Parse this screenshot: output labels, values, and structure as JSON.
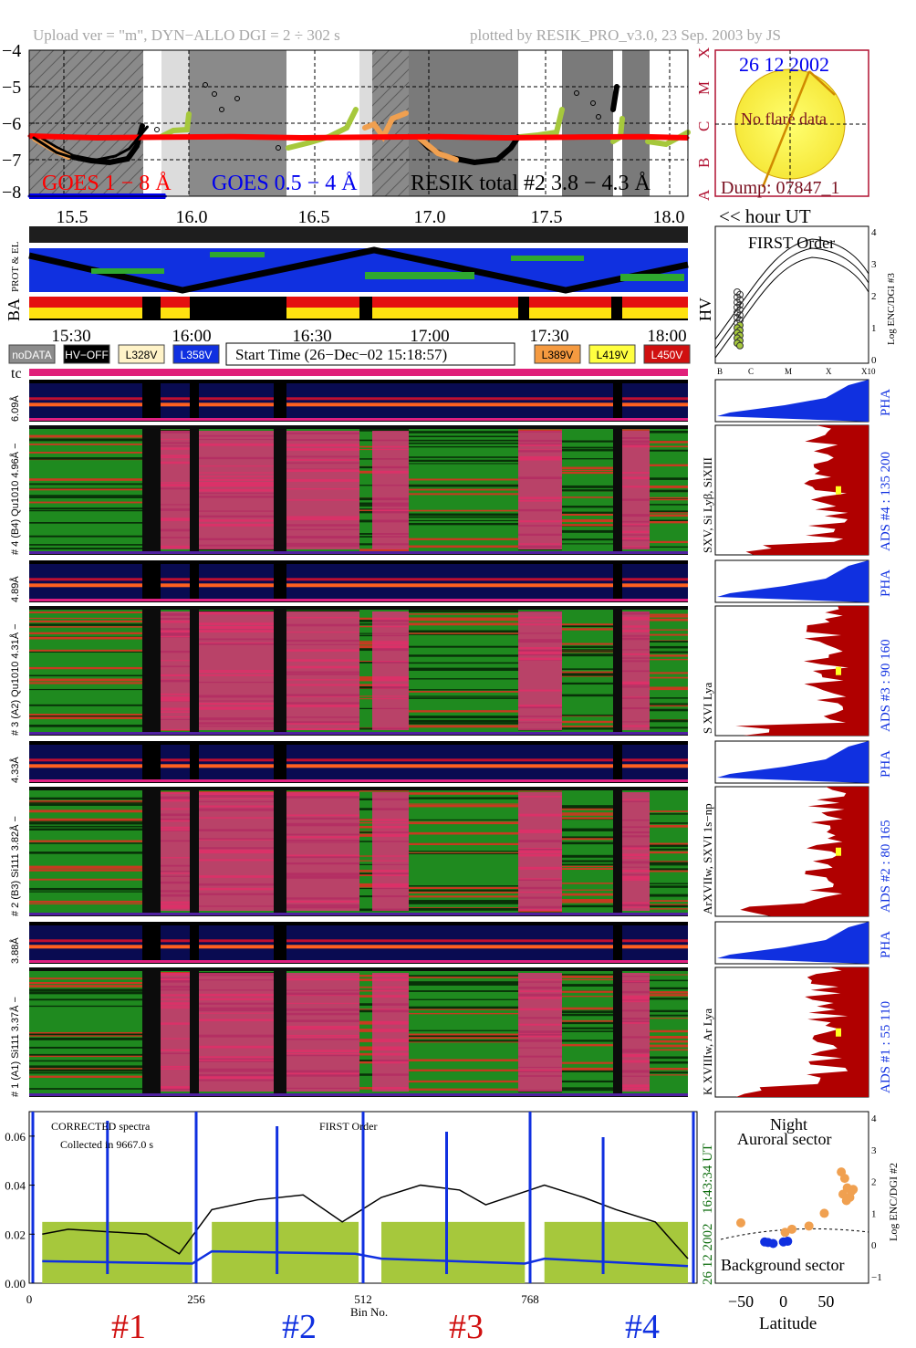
{
  "header": {
    "left": "Upload ver = \"m\", DYN−ALLO DGI =   2 ÷ 302 s",
    "right": "plotted by RESIK_PRO_v3.0, 23 Sep. 2003 by JS"
  },
  "colors": {
    "goes_long": "#ff0000",
    "goes_short": "#0000ee",
    "resik_total": "#000000",
    "olive": "#a6c83c",
    "orange": "#f0a050",
    "dark_red": "#b00000",
    "pha_blue": "#1030e0",
    "magenta": "#ff2aa0",
    "green": "#2fa82f"
  },
  "goes_panel": {
    "y_ticks": [
      "−4",
      "−5",
      "−6",
      "−7",
      "−8"
    ],
    "x_ticks": [
      "15.5",
      "16.0",
      "16.5",
      "17.0",
      "17.5",
      "18.0"
    ],
    "class_labels": [
      "X",
      "M",
      "C",
      "B",
      "A"
    ],
    "legend_goes_long": "GOES 1 − 8 Å",
    "legend_goes_short": "GOES 0.5 − 4 Å",
    "legend_resik": "RESIK total #2  3.8 − 4.3 Å",
    "hour_label": "<< hour UT"
  },
  "sun_panel": {
    "date": "26 12 2002",
    "no_flare": "No flare data",
    "dump": "Dump: 07847_1"
  },
  "strip_labels": {
    "prot_el": "PROT & EL",
    "ba": "BA",
    "hv": "HV"
  },
  "first_order_panel": {
    "title": "FIRST Order",
    "y_label": "Log ENC/DGI #3",
    "y_ticks": [
      "4",
      "3",
      "2",
      "1",
      "0"
    ],
    "x_ticks": [
      "B",
      "C",
      "M",
      "X",
      "X10"
    ]
  },
  "time_axis": {
    "ticks": [
      "15:30",
      "16:00",
      "16:30",
      "17:00",
      "17:30",
      "18:00"
    ],
    "start_time": "Start Time (26−Dec−02 15:18:57)"
  },
  "legend_boxes": [
    {
      "label": "noDATA",
      "bg": "#8c8c8c",
      "fg": "#ffffff"
    },
    {
      "label": "HV−OFF",
      "bg": "#000000",
      "fg": "#ffffff"
    },
    {
      "label": "L328V",
      "bg": "#fff3c8",
      "fg": "#000000"
    },
    {
      "label": "L358V",
      "bg": "#1030e0",
      "fg": "#ffffff"
    },
    {
      "label": "L389V",
      "bg": "#f59a40",
      "fg": "#000000"
    },
    {
      "label": "L419V",
      "bg": "#ffff40",
      "fg": "#000000"
    },
    {
      "label": "L450V",
      "bg": "#d01010",
      "fg": "#ffffff"
    }
  ],
  "tc_label": "tc",
  "channels": [
    {
      "pha_left": "6.09Å",
      "spec_left": "# 4 (B4) Qu1010 4.96Å −",
      "spec_right": "SXV, Si Lyβ, SiXIII",
      "ads_label": "ADS #4 :   135 200",
      "pha_label": "PHA"
    },
    {
      "pha_left": "4.89Å",
      "spec_left": "# 3 (A2) Qu1010 4.31Å −",
      "spec_right": "S XVI Lya",
      "ads_label": "ADS #3 :    90 160",
      "pha_label": "PHA"
    },
    {
      "pha_left": "4.33Å",
      "spec_left": "# 2 (B3) Si111 3.82Å −",
      "spec_right": "ArXVIIw, SXVI 1s−np",
      "ads_label": "ADS #2 :    80 165",
      "pha_label": "PHA"
    },
    {
      "pha_left": "3.88Å",
      "spec_left": "# 1 (A1) Si111 3.37Å −",
      "spec_right": "K XVIIIw, Ar Lya",
      "ads_label": "ADS #1 :    55 110",
      "pha_label": "PHA"
    }
  ],
  "spectrum_panel": {
    "corrected": "CORRECTED spectra",
    "collected": "Collected in  9667.0 s",
    "first_order": "FIRST Order",
    "y_ticks": [
      "0.06",
      "0.04",
      "0.02",
      "0.00"
    ],
    "x_ticks": [
      "0",
      "256",
      "512",
      "768"
    ],
    "x_label": "Bin No.",
    "ut_label": "16:43:34 UT",
    "date_label": "26 12 2002",
    "detectors": [
      {
        "label": "#1",
        "color": "#d01010"
      },
      {
        "label": "#2",
        "color": "#1030e0"
      },
      {
        "label": "#3",
        "color": "#d01010"
      },
      {
        "label": "#4",
        "color": "#1030e0"
      }
    ]
  },
  "latitude_panel": {
    "night": "Night",
    "auroral": "Auroral sector",
    "background": "Background sector",
    "x_label": "Latitude",
    "x_ticks": [
      "−50",
      "0",
      "50"
    ],
    "y_label": "Log ENC/DGI #2",
    "y_ticks": [
      "4",
      "3",
      "2",
      "1",
      "0",
      "−1"
    ]
  },
  "chart_data": [
    {
      "type": "line",
      "title": "",
      "xlabel": "hour UT",
      "ylabel": "",
      "xlim": [
        15.3,
        18.2
      ],
      "ylim": [
        -8,
        -4
      ],
      "series": [
        {
          "name": "GOES 1 − 8 Å",
          "x": [
            15.3,
            15.6,
            15.9,
            16.2,
            16.5,
            16.8,
            17.1,
            17.4,
            17.7,
            18.0,
            18.2
          ],
          "values": [
            -6.35,
            -6.4,
            -6.38,
            -6.37,
            -6.4,
            -6.38,
            -6.37,
            -6.4,
            -6.38,
            -6.37,
            -6.4
          ]
        },
        {
          "name": "GOES 0.5 − 4 Å",
          "x": [
            15.3,
            15.5,
            15.7,
            15.9
          ],
          "values": [
            -8.0,
            -8.0,
            -8.0,
            -8.0
          ]
        },
        {
          "name": "RESIK total #2  3.8 − 4.3 Å",
          "x": [
            15.32,
            15.42,
            15.52,
            15.6,
            15.68,
            15.74,
            15.78,
            15.82
          ],
          "values": [
            -6.4,
            -6.8,
            -7.0,
            -7.0,
            -6.9,
            -6.7,
            -6.4,
            -6.1
          ]
        }
      ]
    },
    {
      "type": "line",
      "title": "",
      "xlabel": "Bin No.",
      "ylabel": "",
      "xlim": [
        0,
        1024
      ],
      "ylim": [
        0,
        0.07
      ],
      "series": [
        {
          "name": "",
          "x": [
            20,
            60,
            120,
            180,
            230,
            280,
            350,
            420,
            480,
            540,
            600,
            660,
            700,
            790,
            850,
            900,
            960,
            1010
          ],
          "values": [
            0.02,
            0.022,
            0.021,
            0.02,
            0.012,
            0.03,
            0.034,
            0.036,
            0.025,
            0.035,
            0.04,
            0.038,
            0.032,
            0.04,
            0.035,
            0.03,
            0.025,
            0.01
          ]
        },
        {
          "name": "",
          "x": [
            20,
            250,
            280,
            500,
            540,
            760,
            790,
            1010
          ],
          "values": [
            0.009,
            0.008,
            0.013,
            0.012,
            0.01,
            0.008,
            0.01,
            0.007
          ]
        }
      ]
    },
    {
      "type": "scatter",
      "title": "",
      "xlabel": "Latitude",
      "ylabel": "Log ENC/DGI #2",
      "xlim": [
        -80,
        100
      ],
      "ylim": [
        -1.2,
        4.2
      ],
      "series": [
        {
          "name": "",
          "x": [
            -50,
            2,
            10,
            30,
            48,
            68,
            72,
            75,
            80,
            70,
            74,
            78,
            82
          ],
          "values": [
            0.7,
            0.4,
            0.5,
            0.6,
            1.0,
            2.3,
            2.1,
            1.8,
            1.7,
            1.6,
            1.4,
            1.5,
            1.75
          ]
        },
        {
          "name": "",
          "x": [
            -22,
            -18,
            -12,
            0,
            5
          ],
          "values": [
            0.1,
            0.08,
            0.05,
            0.1,
            0.12
          ]
        }
      ]
    }
  ]
}
